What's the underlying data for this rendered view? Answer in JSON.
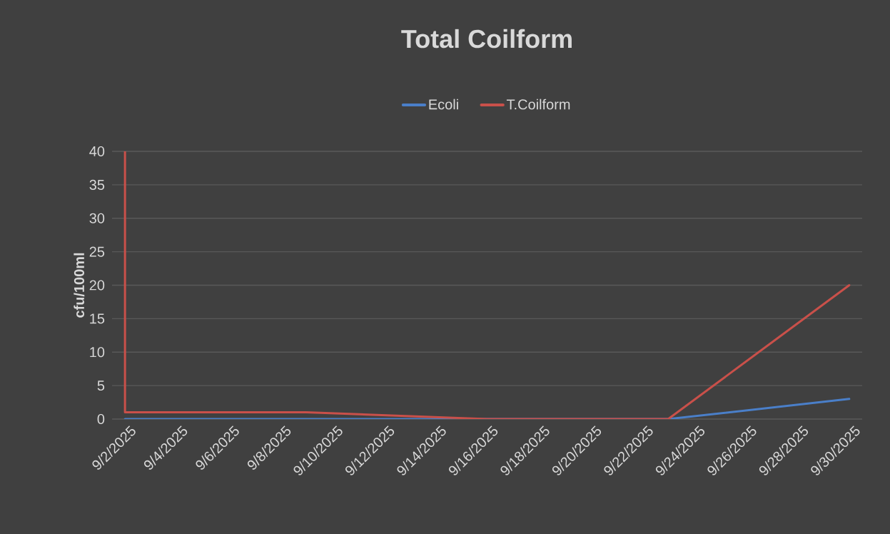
{
  "chart_data": {
    "type": "line",
    "title": "Total Coilform",
    "ylabel": "cfu/100ml",
    "series": [
      {
        "name": "Ecoli",
        "color": "#4a7fc9",
        "x": [
          "2025-09-02",
          "2025-09-09",
          "2025-09-16",
          "2025-09-23",
          "2025-09-30"
        ],
        "values": [
          0,
          0,
          0,
          0,
          3
        ]
      },
      {
        "name": "T.Coilform",
        "color": "#c9504a",
        "x": [
          "2025-09-02",
          "2025-09-02",
          "2025-09-09",
          "2025-09-16",
          "2025-09-23",
          "2025-09-30"
        ],
        "values": [
          40,
          1,
          1,
          0,
          0,
          20
        ]
      }
    ],
    "xlim": [
      "2025-09-01T12:00",
      "2025-09-30T12:00"
    ],
    "xticks": [
      {
        "value": "2025-09-02",
        "label": "9/2/2025"
      },
      {
        "value": "2025-09-04",
        "label": "9/4/2025"
      },
      {
        "value": "2025-09-06",
        "label": "9/6/2025"
      },
      {
        "value": "2025-09-08",
        "label": "9/8/2025"
      },
      {
        "value": "2025-09-10",
        "label": "9/10/2025"
      },
      {
        "value": "2025-09-12",
        "label": "9/12/2025"
      },
      {
        "value": "2025-09-14",
        "label": "9/14/2025"
      },
      {
        "value": "2025-09-16",
        "label": "9/16/2025"
      },
      {
        "value": "2025-09-18",
        "label": "9/18/2025"
      },
      {
        "value": "2025-09-20",
        "label": "9/20/2025"
      },
      {
        "value": "2025-09-22",
        "label": "9/22/2025"
      },
      {
        "value": "2025-09-24",
        "label": "9/24/2025"
      },
      {
        "value": "2025-09-26",
        "label": "9/26/2025"
      },
      {
        "value": "2025-09-28",
        "label": "9/28/2025"
      },
      {
        "value": "2025-09-30",
        "label": "9/30/2025"
      }
    ],
    "ylim": [
      0,
      40
    ],
    "yticks": [
      0,
      5,
      10,
      15,
      20,
      25,
      30,
      35,
      40
    ],
    "grid": "y",
    "legend": "top",
    "marker": "none"
  }
}
